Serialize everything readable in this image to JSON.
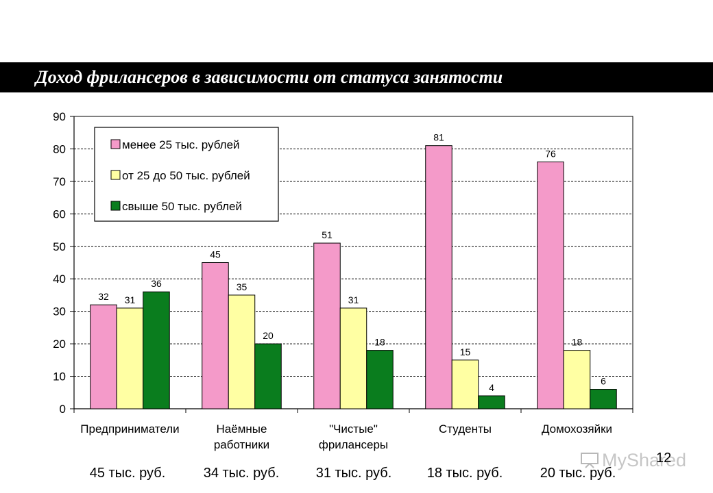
{
  "title": "Доход фрилансеров в зависимости от статуса занятости",
  "page_number": "12",
  "watermark": {
    "text": "MyShared",
    "icon": "presentation-board-icon"
  },
  "medians": [
    "45 тыс. руб.",
    "34 тыс. руб.",
    "31 тыс. руб.",
    "18 тыс. руб.",
    "20 тыс. руб."
  ],
  "chart_data": {
    "type": "bar",
    "categories": [
      [
        "Предприниматели"
      ],
      [
        "Наёмные",
        "работники"
      ],
      [
        "\"Чистые\"",
        "фрилансеры"
      ],
      [
        "Студенты"
      ],
      [
        "Домохозяйки"
      ]
    ],
    "series": [
      {
        "name": "менее 25 тыс. рублей",
        "color": "#f49ac9",
        "values": [
          32,
          45,
          51,
          81,
          76
        ]
      },
      {
        "name": "от 25 до 50 тыс. рублей",
        "color": "#ffffa3",
        "values": [
          31,
          35,
          31,
          15,
          18
        ]
      },
      {
        "name": "свыше 50 тыс. рублей",
        "color": "#0a7d1e",
        "values": [
          36,
          20,
          18,
          4,
          6
        ]
      }
    ],
    "data_labels": [
      [
        "32",
        "45",
        "51",
        "81",
        "76"
      ],
      [
        "31",
        "35",
        "31",
        "15",
        "18"
      ],
      [
        "36",
        "20",
        "18",
        "4",
        "6"
      ]
    ],
    "ylim": [
      0,
      90
    ],
    "yticks": [
      0,
      10,
      20,
      30,
      40,
      50,
      60,
      70,
      80,
      90
    ],
    "grid": true,
    "legend_position": "top-left"
  }
}
